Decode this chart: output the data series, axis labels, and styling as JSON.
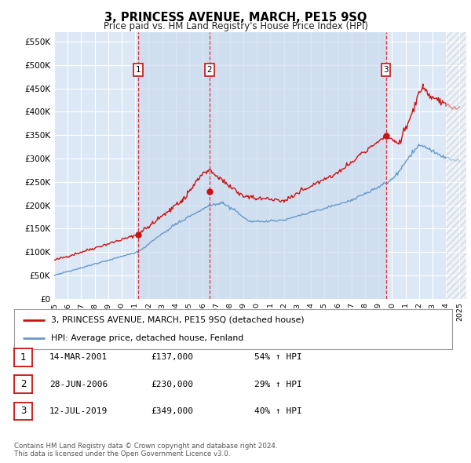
{
  "title": "3, PRINCESS AVENUE, MARCH, PE15 9SQ",
  "subtitle": "Price paid vs. HM Land Registry's House Price Index (HPI)",
  "ylabel_ticks": [
    "£0",
    "£50K",
    "£100K",
    "£150K",
    "£200K",
    "£250K",
    "£300K",
    "£350K",
    "£400K",
    "£450K",
    "£500K",
    "£550K"
  ],
  "ytick_values": [
    0,
    50000,
    100000,
    150000,
    200000,
    250000,
    300000,
    350000,
    400000,
    450000,
    500000,
    550000
  ],
  "ylim": [
    0,
    570000
  ],
  "xlim_start": 1995.0,
  "xlim_end": 2025.5,
  "background_color": "#dce8f5",
  "plot_bg_color": "#dce8f5",
  "grid_color": "#ffffff",
  "sale_markers": [
    {
      "num": 1,
      "year": 2001.2,
      "price": 137000,
      "label": "1"
    },
    {
      "num": 2,
      "year": 2006.5,
      "price": 230000,
      "label": "2"
    },
    {
      "num": 3,
      "year": 2019.55,
      "price": 349000,
      "label": "3"
    }
  ],
  "vline_color": "#dd2222",
  "vline_style": "--",
  "red_line_color": "#cc1111",
  "blue_line_color": "#6699cc",
  "band_color": "#ccdcee",
  "legend_entries": [
    "3, PRINCESS AVENUE, MARCH, PE15 9SQ (detached house)",
    "HPI: Average price, detached house, Fenland"
  ],
  "table_rows": [
    {
      "num": "1",
      "date": "14-MAR-2001",
      "price": "£137,000",
      "change": "54% ↑ HPI"
    },
    {
      "num": "2",
      "date": "28-JUN-2006",
      "price": "£230,000",
      "change": "29% ↑ HPI"
    },
    {
      "num": "3",
      "date": "12-JUL-2019",
      "price": "£349,000",
      "change": "40% ↑ HPI"
    }
  ],
  "footer": "Contains HM Land Registry data © Crown copyright and database right 2024.\nThis data is licensed under the Open Government Licence v3.0.",
  "xtick_years": [
    1995,
    1996,
    1997,
    1998,
    1999,
    2000,
    2001,
    2002,
    2003,
    2004,
    2005,
    2006,
    2007,
    2008,
    2009,
    2010,
    2011,
    2012,
    2013,
    2014,
    2015,
    2016,
    2017,
    2018,
    2019,
    2020,
    2021,
    2022,
    2023,
    2024,
    2025
  ]
}
